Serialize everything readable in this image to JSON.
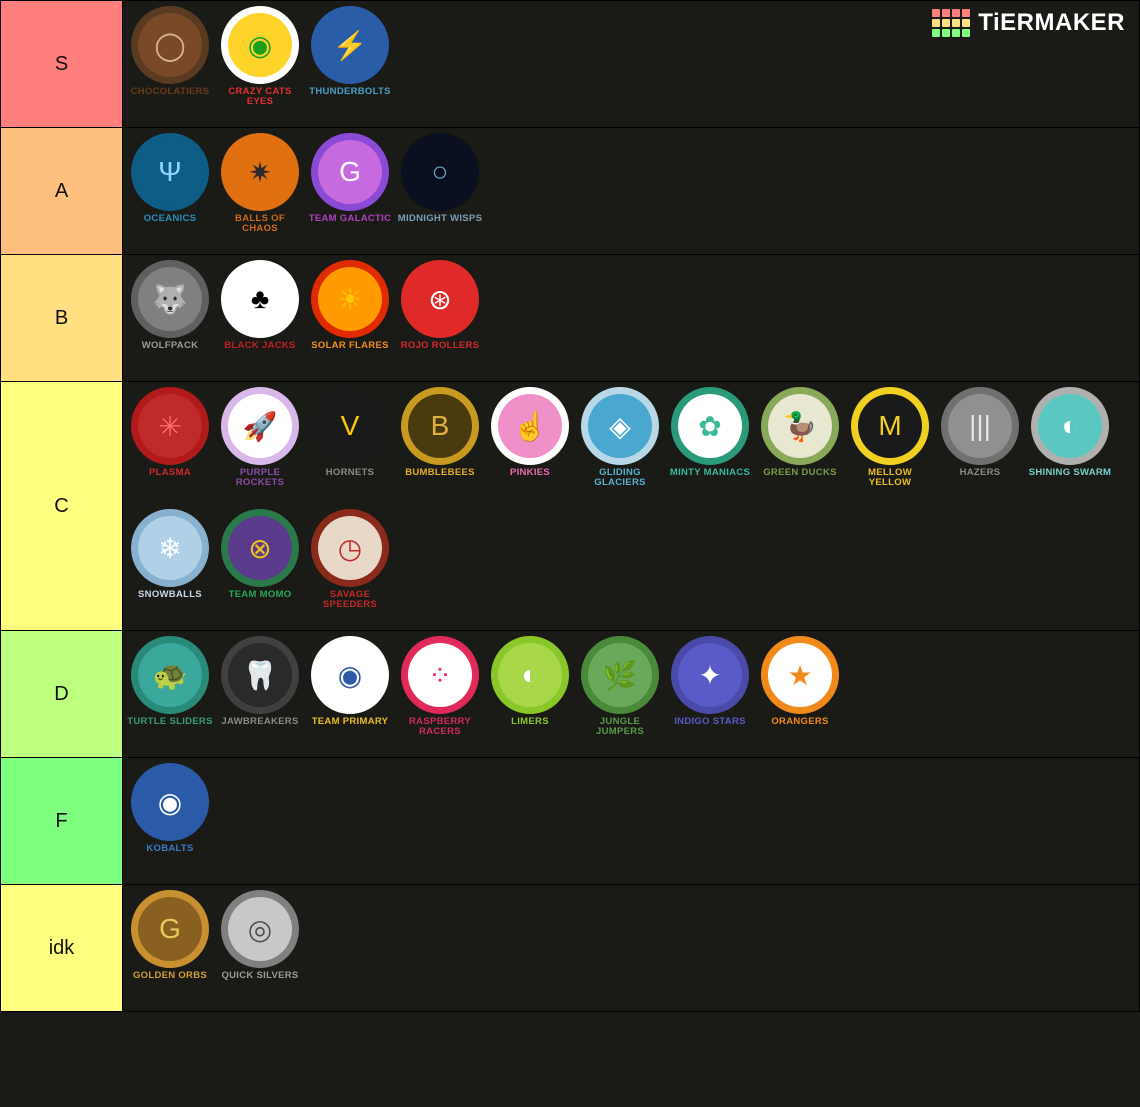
{
  "watermark": {
    "text": "TiERMAKER"
  },
  "watermark_colors": {
    "r1": [
      "#ff7f7e",
      "#ff7f7e",
      "#ff7f7e",
      "#ff7f7e"
    ],
    "r2": [
      "#ffdf7f",
      "#ffdf7f",
      "#ffdf7f",
      "#ffdf7f"
    ],
    "r3": [
      "#7fff7f",
      "#7fff7f",
      "#7fff7f",
      "#7fff7f"
    ]
  },
  "tiers": [
    {
      "label": "S",
      "color": "#ff7f7e",
      "items": [
        {
          "name": "Chocolatiers",
          "text_color": "#6b3a1a",
          "outer": "#5b3a22",
          "inner": "#7a4a28",
          "glyph": "◯",
          "glyph_color": "#d9b38c"
        },
        {
          "name": "CRAZY CATS EYES",
          "text_color": "#e03030",
          "outer": "#ffffff",
          "inner": "#ffd42a",
          "glyph": "◉",
          "glyph_color": "#1aa01a"
        },
        {
          "name": "THUNDERBOLTS",
          "text_color": "#4aa0c8",
          "outer": "#2a5da8",
          "inner": "#2a5da8",
          "glyph": "⚡",
          "glyph_color": "#ffcc00"
        }
      ]
    },
    {
      "label": "A",
      "color": "#ffbf7e",
      "items": [
        {
          "name": "OCEANICS",
          "text_color": "#2a90c0",
          "outer": "#0d5d85",
          "inner": "#0d5d85",
          "glyph": "Ψ",
          "glyph_color": "#8fd6ff"
        },
        {
          "name": "BALLS OF CHAOS",
          "text_color": "#d06a1a",
          "outer": "#e07010",
          "inner": "#e07010",
          "glyph": "✷",
          "glyph_color": "#2a2a2a"
        },
        {
          "name": "TEAM GALACTIC",
          "text_color": "#b040c0",
          "outer": "#8a4ad6",
          "inner": "#c86adf",
          "glyph": "G",
          "glyph_color": "#ffffff"
        },
        {
          "name": "MIDNIGHT WISPS",
          "text_color": "#7aa0b8",
          "outer": "#0a1020",
          "inner": "#0a1020",
          "glyph": "○",
          "glyph_color": "#6fa8c8"
        }
      ]
    },
    {
      "label": "B",
      "color": "#ffdf7f",
      "items": [
        {
          "name": "WOLFPACK",
          "text_color": "#9a9a9a",
          "outer": "#606060",
          "inner": "#808080",
          "glyph": "🐺",
          "glyph_color": "#d0d0d0"
        },
        {
          "name": "BLACK JACKS",
          "text_color": "#c02020",
          "outer": "#ffffff",
          "inner": "#ffffff",
          "glyph": "♣",
          "glyph_color": "#000000"
        },
        {
          "name": "SOLAR FLARES",
          "text_color": "#f0901a",
          "outer": "#e02a00",
          "inner": "#ff9a00",
          "glyph": "☀",
          "glyph_color": "#ffc800"
        },
        {
          "name": "ROJO ROLLERS",
          "text_color": "#d02a2a",
          "outer": "#e02a2a",
          "inner": "#e02a2a",
          "glyph": "⊛",
          "glyph_color": "#ffffff"
        }
      ]
    },
    {
      "label": "C",
      "color": "#fefe7f",
      "items": [
        {
          "name": "PLASMA",
          "text_color": "#d02a2a",
          "outer": "#b01a1a",
          "inner": "#c02a2a",
          "glyph": "✳",
          "glyph_color": "#ff6a6a"
        },
        {
          "name": "PURPLE ROCKETS",
          "text_color": "#8a4aa8",
          "outer": "#d8b8e8",
          "inner": "#ffffff",
          "glyph": "🚀",
          "glyph_color": "#5a2a7a"
        },
        {
          "name": "HORNETS",
          "text_color": "#8a8a8a",
          "outer": "#1a1a1a",
          "inner": "#1a1a1a",
          "glyph": "V",
          "glyph_color": "#ffc800"
        },
        {
          "name": "Bumblebees",
          "text_color": "#e0b020",
          "outer": "#c89a20",
          "inner": "#4a3a10",
          "glyph": "B",
          "glyph_color": "#e0b040"
        },
        {
          "name": "PINKIES",
          "text_color": "#e86ab0",
          "outer": "#ffffff",
          "inner": "#f090c8",
          "glyph": "☝",
          "glyph_color": "#ffffff"
        },
        {
          "name": "GLIDING GLACIERS",
          "text_color": "#5ab0d0",
          "outer": "#b8d8e8",
          "inner": "#4aa8d0",
          "glyph": "◈",
          "glyph_color": "#ffffff"
        },
        {
          "name": "MINTY MANIACS",
          "text_color": "#3ab89a",
          "outer": "#2a9a7a",
          "inner": "#ffffff",
          "glyph": "✿",
          "glyph_color": "#3ab89a"
        },
        {
          "name": "GREEN DUCKS",
          "text_color": "#7a9a4a",
          "outer": "#8aa85a",
          "inner": "#e8e8d0",
          "glyph": "🦆",
          "glyph_color": "#5a7a3a"
        },
        {
          "name": "MELLOW YELLOW",
          "text_color": "#e8c020",
          "outer": "#f0d020",
          "inner": "#1a1a1a",
          "glyph": "M",
          "glyph_color": "#f0d020"
        },
        {
          "name": "HAZERS",
          "text_color": "#8a8a8a",
          "outer": "#707070",
          "inner": "#909090",
          "glyph": "|||",
          "glyph_color": "#e8e8e8"
        },
        {
          "name": "SHINING SWARM",
          "text_color": "#7ad0c8",
          "outer": "#b0b0b0",
          "inner": "#5ac8c0",
          "glyph": "◐",
          "glyph_color": "#ffffff"
        },
        {
          "name": "SNOWBALLS",
          "text_color": "#c8d8e8",
          "outer": "#8ab0d0",
          "inner": "#b0d0e8",
          "glyph": "❄",
          "glyph_color": "#ffffff"
        },
        {
          "name": "TEAM MOMO",
          "text_color": "#2aa85a",
          "outer": "#2a7a4a",
          "inner": "#5a3a8a",
          "glyph": "⊗",
          "glyph_color": "#e8c020"
        },
        {
          "name": "SAVAGE SPEEDERS",
          "text_color": "#c02a2a",
          "outer": "#8a2a1a",
          "inner": "#e8d8c8",
          "glyph": "◷",
          "glyph_color": "#c02a2a"
        }
      ]
    },
    {
      "label": "D",
      "color": "#bfff7f",
      "items": [
        {
          "name": "TURTLE SLIDERS",
          "text_color": "#3a9a7a",
          "outer": "#2a8a7a",
          "inner": "#3aa89a",
          "glyph": "🐢",
          "glyph_color": "#e8b020"
        },
        {
          "name": "JAWBREAKERS",
          "text_color": "#8a8a8a",
          "outer": "#404040",
          "inner": "#2a2a2a",
          "glyph": "🦷",
          "glyph_color": "#c8c8c8"
        },
        {
          "name": "TEAM PRIMARY",
          "text_color": "#e8c020",
          "outer": "#ffffff",
          "inner": "#ffffff",
          "glyph": "◉",
          "glyph_color": "#2a5aa8"
        },
        {
          "name": "RASPBERRY RACERS",
          "text_color": "#d02a5a",
          "outer": "#e02a5a",
          "inner": "#ffffff",
          "glyph": "⁘",
          "glyph_color": "#e02a5a"
        },
        {
          "name": "LIMERS",
          "text_color": "#8ac82a",
          "outer": "#8ac82a",
          "inner": "#a8d84a",
          "glyph": "◐",
          "glyph_color": "#ffffff"
        },
        {
          "name": "Jungle Jumpers",
          "text_color": "#5a9a4a",
          "outer": "#4a8a3a",
          "inner": "#6aa85a",
          "glyph": "🌿",
          "glyph_color": "#ffffff"
        },
        {
          "name": "INDIGO STARS",
          "text_color": "#5a5ac8",
          "outer": "#4a4aa8",
          "inner": "#5a5ac8",
          "glyph": "✦",
          "glyph_color": "#ffffff"
        },
        {
          "name": "Orangers",
          "text_color": "#f08a1a",
          "outer": "#f08a1a",
          "inner": "#ffffff",
          "glyph": "★",
          "glyph_color": "#f08a1a"
        }
      ]
    },
    {
      "label": "F",
      "color": "#7fff7f",
      "items": [
        {
          "name": "KOBALTS",
          "text_color": "#3a7ac8",
          "outer": "#2a5aa8",
          "inner": "#2a5aa8",
          "glyph": "◉",
          "glyph_color": "#ffffff"
        }
      ]
    },
    {
      "label": "idk",
      "color": "#fefe7f",
      "items": [
        {
          "name": "GOLDEN ORBS",
          "text_color": "#d0a030",
          "outer": "#c89030",
          "inner": "#8a6020",
          "glyph": "G",
          "glyph_color": "#e8c860"
        },
        {
          "name": "QUICK SILVERS",
          "text_color": "#9a9a9a",
          "outer": "#808080",
          "inner": "#c8c8c8",
          "glyph": "◎",
          "glyph_color": "#505050"
        }
      ]
    }
  ]
}
